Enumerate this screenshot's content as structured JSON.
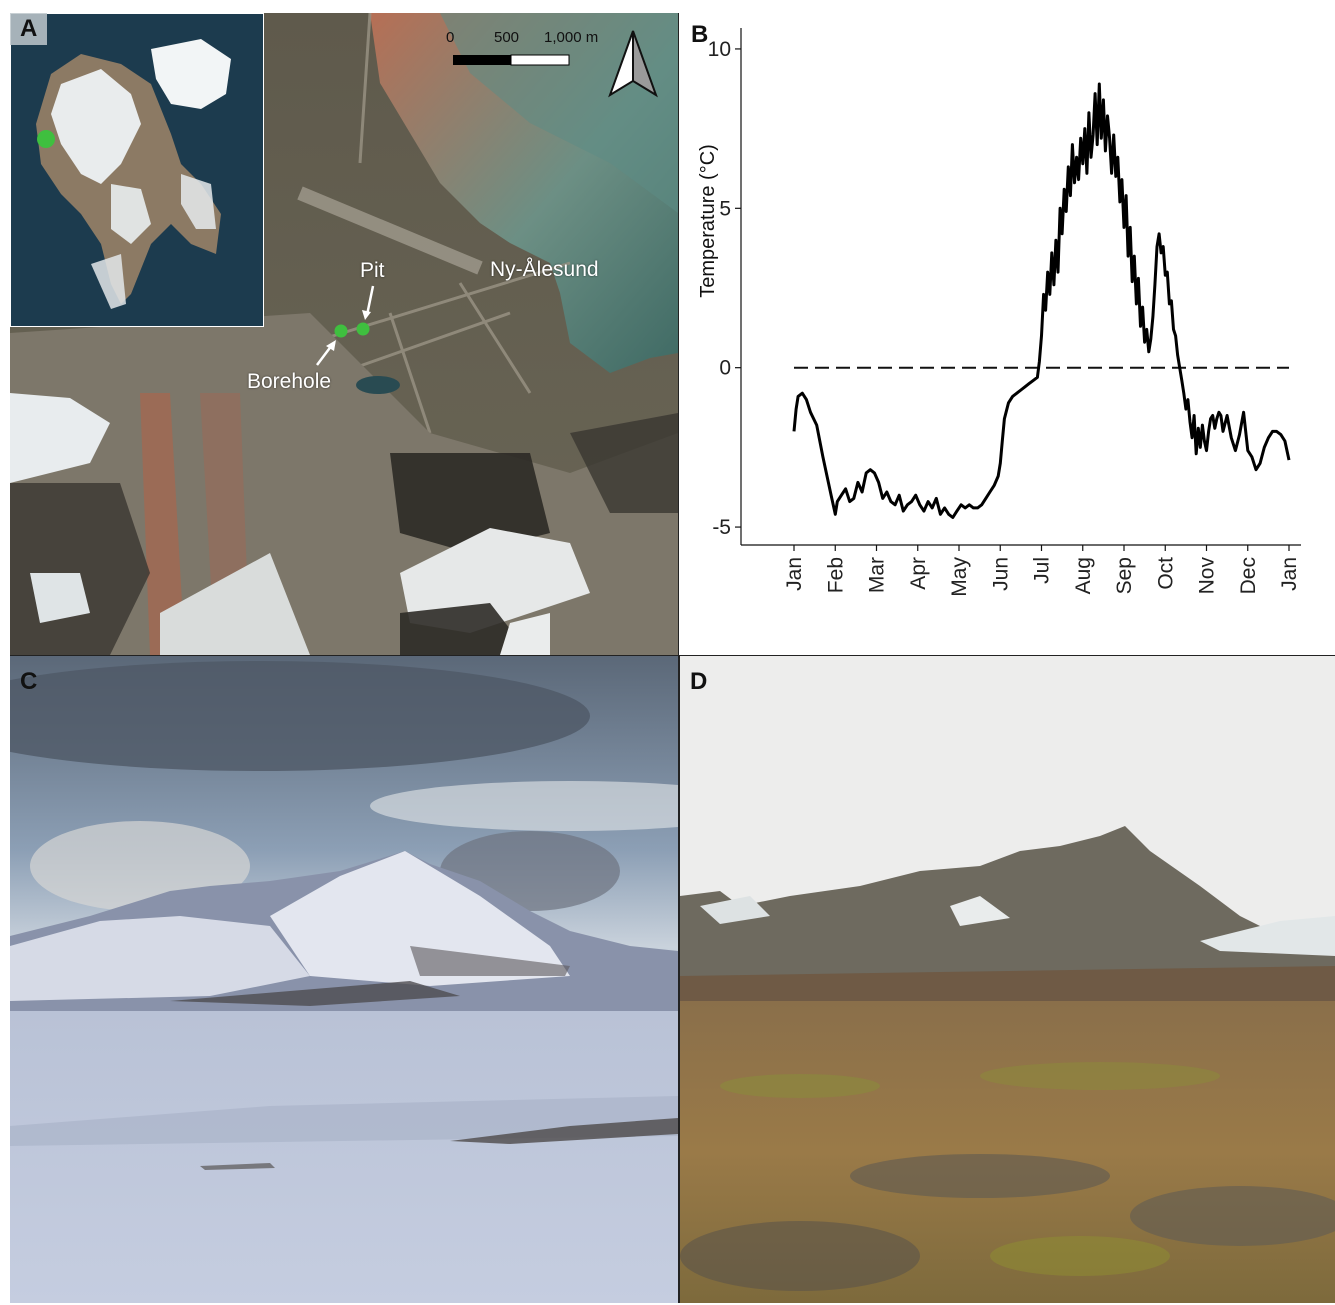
{
  "panels": {
    "a": {
      "letter": "A",
      "scale_bar": {
        "ticks": [
          "0",
          "500",
          "1,000 m"
        ]
      },
      "labels": {
        "pit": "Pit",
        "borehole": "Borehole",
        "settlement": "Ny-Ålesund"
      },
      "icons": [
        "north-arrow-icon",
        "site-marker-icon"
      ],
      "colors": {
        "site_marker": "#3fbf3f"
      }
    },
    "b": {
      "letter": "B"
    },
    "c": {
      "letter": "C"
    },
    "d": {
      "letter": "D"
    }
  },
  "chart_data": {
    "type": "line",
    "title": "",
    "xlabel": "",
    "ylabel": "Temperature (°C)",
    "ylim": [
      -5.5,
      10.5
    ],
    "yticks": [
      -5,
      0,
      5,
      10
    ],
    "ytick_labels": [
      "-5",
      "0",
      "5",
      "10"
    ],
    "x_tick_labels": [
      "Jan",
      "Feb",
      "Mar",
      "Apr",
      "May",
      "Jun",
      "Jul",
      "Aug",
      "Sep",
      "Oct",
      "Nov",
      "Dec",
      "Jan"
    ],
    "reference_line": {
      "y": 0,
      "style": "dashed"
    },
    "series": [
      {
        "x_month": [
          0.0,
          0.05,
          0.1,
          0.2,
          0.3,
          0.4,
          0.55,
          0.7,
          0.8,
          0.9,
          1.0,
          1.05,
          1.15,
          1.25,
          1.35,
          1.45,
          1.55,
          1.65,
          1.75,
          1.85,
          1.95,
          2.05,
          2.15,
          2.25,
          2.35,
          2.45,
          2.55,
          2.65,
          2.75,
          2.85,
          2.95,
          3.05,
          3.15,
          3.25,
          3.35,
          3.45,
          3.55,
          3.65,
          3.75,
          3.85,
          3.95,
          4.05,
          4.15,
          4.25,
          4.35,
          4.45,
          4.55,
          4.65,
          4.75,
          4.85,
          4.95,
          5.0,
          5.05,
          5.1,
          5.2,
          5.3,
          5.4,
          5.5,
          5.6,
          5.7,
          5.8,
          5.9,
          5.95,
          6.0,
          6.05,
          6.1,
          6.15,
          6.2,
          6.25,
          6.3,
          6.35,
          6.4,
          6.45,
          6.5,
          6.55,
          6.6,
          6.65,
          6.7,
          6.75,
          6.8,
          6.85,
          6.9,
          6.95,
          7.0,
          7.05,
          7.1,
          7.15,
          7.2,
          7.25,
          7.3,
          7.35,
          7.4,
          7.45,
          7.5,
          7.55,
          7.6,
          7.65,
          7.7,
          7.75,
          7.8,
          7.85,
          7.9,
          7.95,
          8.0,
          8.05,
          8.1,
          8.15,
          8.2,
          8.25,
          8.3,
          8.35,
          8.4,
          8.45,
          8.5,
          8.55,
          8.6,
          8.65,
          8.7,
          8.75,
          8.8,
          8.85,
          8.9,
          8.95,
          9.0,
          9.05,
          9.1,
          9.15,
          9.2,
          9.25,
          9.3,
          9.35,
          9.4,
          9.45,
          9.5,
          9.55,
          9.6,
          9.65,
          9.7,
          9.75,
          9.8,
          9.85,
          9.9,
          9.95,
          10.0,
          10.05,
          10.1,
          10.15,
          10.2,
          10.25,
          10.3,
          10.35,
          10.4,
          10.5,
          10.6,
          10.7,
          10.8,
          10.9,
          11.0,
          11.1,
          11.2,
          11.3,
          11.4,
          11.5,
          11.6,
          11.7,
          11.8,
          11.9,
          12.0
        ],
        "values": [
          -2.0,
          -1.3,
          -0.9,
          -0.8,
          -1.0,
          -1.4,
          -1.8,
          -2.8,
          -3.4,
          -4.0,
          -4.6,
          -4.2,
          -4.0,
          -3.8,
          -4.2,
          -4.1,
          -3.6,
          -3.9,
          -3.3,
          -3.2,
          -3.3,
          -3.6,
          -4.1,
          -3.9,
          -4.2,
          -4.3,
          -4.0,
          -4.5,
          -4.3,
          -4.2,
          -4.0,
          -4.3,
          -4.5,
          -4.2,
          -4.4,
          -4.1,
          -4.6,
          -4.4,
          -4.6,
          -4.7,
          -4.5,
          -4.3,
          -4.4,
          -4.3,
          -4.4,
          -4.4,
          -4.3,
          -4.1,
          -3.9,
          -3.7,
          -3.4,
          -3.0,
          -2.3,
          -1.6,
          -1.1,
          -0.9,
          -0.8,
          -0.7,
          -0.6,
          -0.5,
          -0.4,
          -0.3,
          0.2,
          1.0,
          2.3,
          1.8,
          3.0,
          2.3,
          3.6,
          2.6,
          4.0,
          3.0,
          5.0,
          4.2,
          5.6,
          4.9,
          6.3,
          5.4,
          7.0,
          5.8,
          6.6,
          5.9,
          7.2,
          6.4,
          7.5,
          6.1,
          8.0,
          6.6,
          7.3,
          8.6,
          7.0,
          8.9,
          7.2,
          8.4,
          6.8,
          7.9,
          7.2,
          6.1,
          7.3,
          6.0,
          6.6,
          5.2,
          5.9,
          4.4,
          5.4,
          3.5,
          4.4,
          2.7,
          3.5,
          2.0,
          2.8,
          1.3,
          1.9,
          0.8,
          1.2,
          0.5,
          0.9,
          1.6,
          2.6,
          3.8,
          4.2,
          3.6,
          3.8,
          2.9,
          3.0,
          2.0,
          2.1,
          1.2,
          1.0,
          0.4,
          0.0,
          -0.4,
          -0.8,
          -1.3,
          -1.0,
          -1.7,
          -2.2,
          -1.5,
          -2.7,
          -1.9,
          -2.5,
          -1.8,
          -2.3,
          -2.6,
          -2.0,
          -1.6,
          -1.5,
          -1.9,
          -1.6,
          -1.4,
          -1.5,
          -2.0,
          -1.5,
          -2.2,
          -2.6,
          -2.1,
          -1.4,
          -2.6,
          -2.8,
          -3.2,
          -3.0,
          -2.5,
          -2.2,
          -2.0,
          -2.0,
          -2.1,
          -2.3,
          -2.9
        ]
      }
    ],
    "grid": false,
    "legend": "none"
  }
}
